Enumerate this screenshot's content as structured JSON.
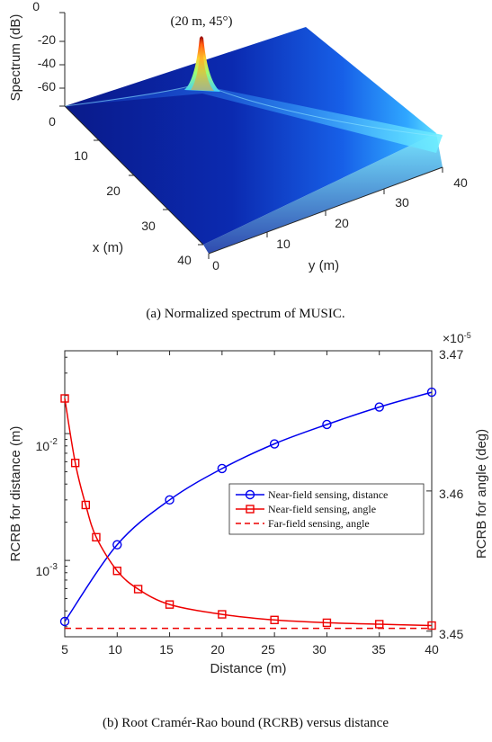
{
  "figure": {
    "caption_a": "(a) Normalized spectrum of MUSIC.",
    "caption_b": "(b) Root Cramér-Rao bound (RCRB) versus distance"
  },
  "chart_data": [
    {
      "type": "surface",
      "zlabel": "Spectrum (dB)",
      "xlabel": "x (m)",
      "ylabel": "y (m)",
      "z_ticks": [
        "0",
        "-20",
        "-40",
        "-60"
      ],
      "x_ticks": [
        "0",
        "10",
        "20",
        "30",
        "40"
      ],
      "y_ticks": [
        "0",
        "10",
        "20",
        "30",
        "40"
      ],
      "xlim": [
        0,
        40
      ],
      "ylim": [
        0,
        40
      ],
      "zlim": [
        -70,
        0
      ],
      "peak": {
        "x": 14.1,
        "y": 14.1,
        "z": 0,
        "label": "(20 m, 45°)"
      },
      "colormap": [
        "#0a1a8a",
        "#0a3fd0",
        "#1f7fff",
        "#38c6ff",
        "#7fffc0",
        "#e0ff60",
        "#ff8a20",
        "#8b0000"
      ]
    },
    {
      "type": "line",
      "xlabel": "Distance (m)",
      "ylabel_left": "RCRB for distance (m)",
      "ylabel_right": "RCRB for angle (deg)",
      "x_ticks": [
        "5",
        "10",
        "15",
        "20",
        "25",
        "30",
        "35",
        "40"
      ],
      "xlim": [
        5,
        40
      ],
      "y_left_scale": "log",
      "y_left_lim": [
        0.00025,
        0.045
      ],
      "y_left_ticks": [
        {
          "base": "10",
          "exp": "-2",
          "value": 0.01
        },
        {
          "base": "10",
          "exp": "-3",
          "value": 0.001
        }
      ],
      "y_right_lim": [
        3.4496,
        3.47
      ],
      "y_right_ticks": [
        "3.47",
        "3.46",
        "3.45"
      ],
      "y_right_values": [
        3.47,
        3.46,
        3.45
      ],
      "y_right_multiplier": "×10",
      "y_right_multiplier_exp": "-5",
      "series": [
        {
          "name": "Near-field sensing, distance",
          "axis": "left",
          "color": "#0000ee",
          "marker": "circle",
          "style": "solid",
          "x": [
            5,
            10,
            15,
            20,
            25,
            30,
            35,
            40
          ],
          "values": [
            0.00033,
            0.00133,
            0.003,
            0.0053,
            0.0083,
            0.0118,
            0.0162,
            0.0212
          ]
        },
        {
          "name": "Near-field sensing, angle",
          "axis": "right",
          "color": "#ee0000",
          "marker": "square",
          "style": "solid",
          "x": [
            5,
            6,
            7,
            8,
            10,
            12,
            15,
            20,
            25,
            30,
            35,
            40
          ],
          "values": [
            3.4666,
            3.462,
            3.459,
            3.4567,
            3.4543,
            3.453,
            3.4519,
            3.4512,
            3.4508,
            3.4506,
            3.4505,
            3.4504
          ]
        },
        {
          "name": "Far-field sensing, angle",
          "axis": "right",
          "color": "#ee0000",
          "marker": "none",
          "style": "dashed",
          "x": [
            5,
            40
          ],
          "values": [
            3.4502,
            3.4502
          ]
        }
      ],
      "legend_position": "right-middle"
    }
  ]
}
